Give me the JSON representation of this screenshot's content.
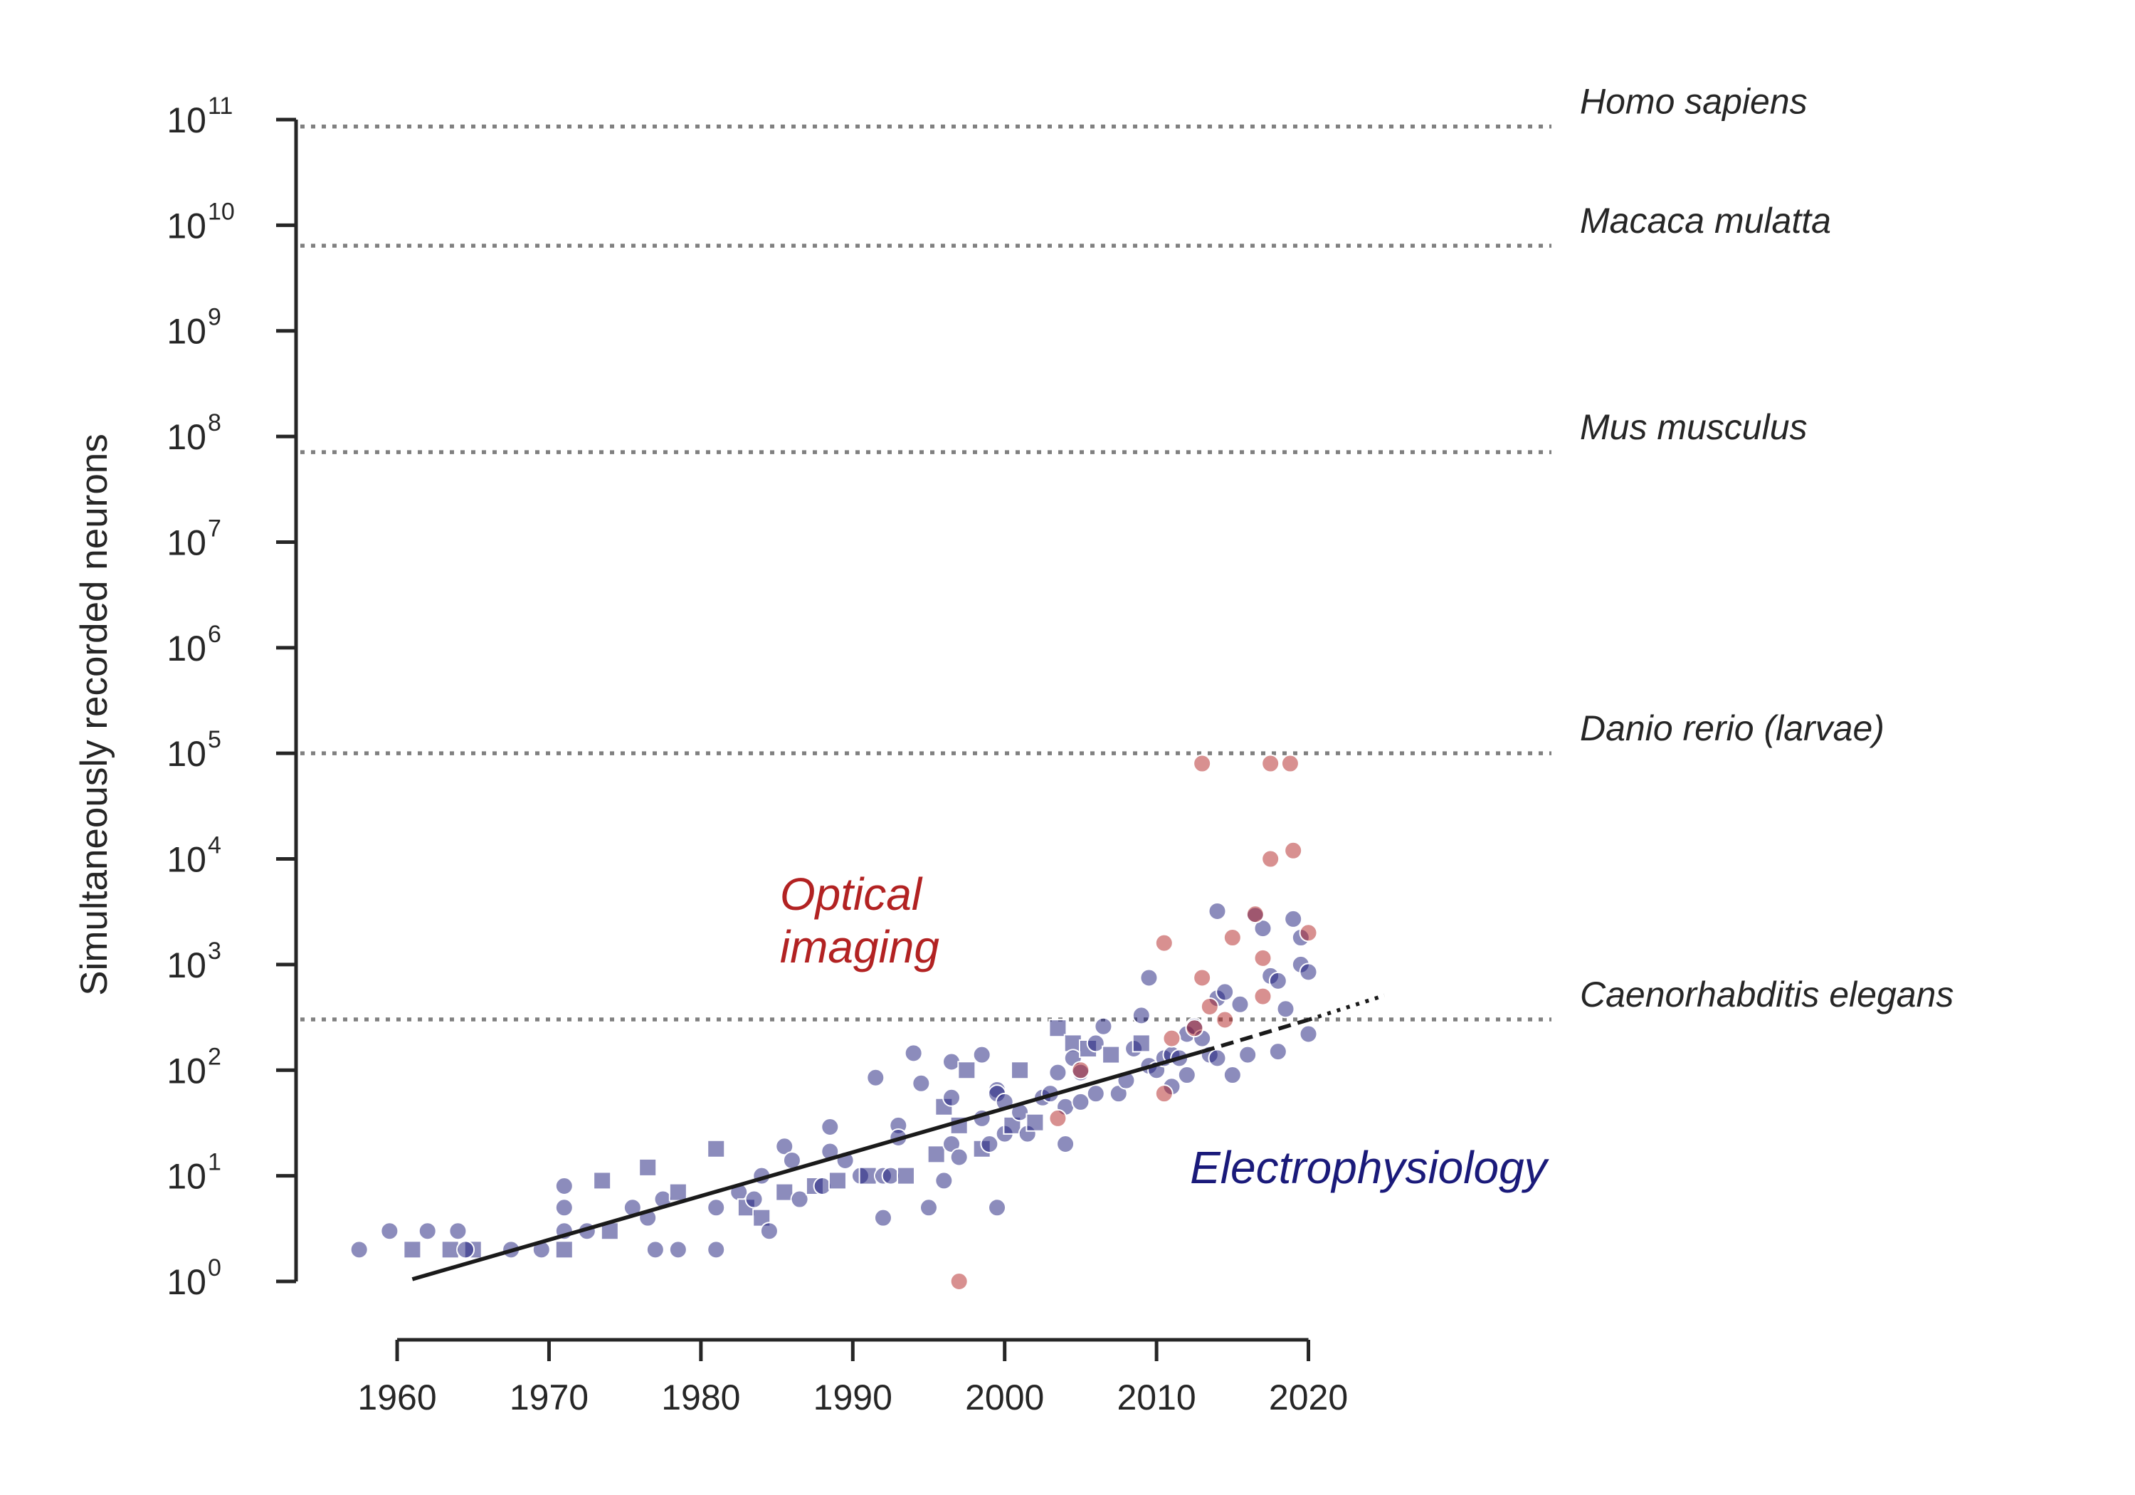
{
  "chart_data": {
    "type": "scatter",
    "ylabel": "Simultaneously recorded neurons",
    "xlabel": "",
    "y_scale": "log",
    "x_ticks": [
      1960,
      1970,
      1980,
      1990,
      2000,
      2010,
      2020
    ],
    "xlim": [
      1954,
      2036
    ],
    "y_tick_exponents": [
      0,
      1,
      2,
      3,
      4,
      5,
      6,
      7,
      8,
      9,
      10,
      11
    ],
    "y_tick_base": "10",
    "ylim": [
      1,
      100000000000
    ],
    "grid": false,
    "colors": {
      "electrophysiology": "#1a1a7a",
      "optical": "#b22222",
      "reference_line": "#808080",
      "trend": "#1a1a1a"
    },
    "reference_lines": [
      {
        "label": "Homo sapiens",
        "y": 86000000000
      },
      {
        "label": "Macaca mulatta",
        "y": 6400000000
      },
      {
        "label": "Mus musculus",
        "y": 71000000
      },
      {
        "label": "Danio rerio (larvae)",
        "y": 100000
      },
      {
        "label": "Caenorhabditis elegans",
        "y": 302
      }
    ],
    "annotations": [
      {
        "text_lines": [
          "Optical",
          "imaging"
        ],
        "color": "#b22222",
        "x": 1985.2,
        "y": 1050
      },
      {
        "text_lines": [
          "Electrophysiology"
        ],
        "color": "#1a1a7a",
        "x": 2012.2,
        "y": 8.5
      }
    ],
    "trend_line": {
      "solid": [
        [
          1961,
          1.05
        ],
        [
          2013,
          150
        ]
      ],
      "dashed": [
        [
          2013,
          150
        ],
        [
          2020,
          300
        ]
      ],
      "dotted": [
        [
          2020,
          300
        ],
        [
          2025,
          510
        ]
      ]
    },
    "series": [
      {
        "name": "Electrophysiology",
        "marker_shapes": [
          "circle",
          "square"
        ],
        "points": [
          [
            1957.5,
            2,
            "c"
          ],
          [
            1959.5,
            3,
            "c"
          ],
          [
            1962,
            3,
            "c"
          ],
          [
            1961,
            2,
            "s"
          ],
          [
            1963.5,
            2,
            "s"
          ],
          [
            1964,
            3,
            "c"
          ],
          [
            1965,
            2,
            "s"
          ],
          [
            1964.5,
            2,
            "c"
          ],
          [
            1967.5,
            2,
            "c"
          ],
          [
            1969.5,
            2,
            "c"
          ],
          [
            1971,
            2,
            "s"
          ],
          [
            1971,
            8,
            "c"
          ],
          [
            1971,
            5,
            "c"
          ],
          [
            1971,
            3,
            "c"
          ],
          [
            1972.5,
            3,
            "c"
          ],
          [
            1973.5,
            9,
            "s"
          ],
          [
            1974,
            3,
            "s"
          ],
          [
            1975.5,
            5,
            "c"
          ],
          [
            1976.5,
            12,
            "s"
          ],
          [
            1976.5,
            4,
            "c"
          ],
          [
            1977,
            2,
            "c"
          ],
          [
            1977.5,
            6,
            "c"
          ],
          [
            1978.5,
            7,
            "s"
          ],
          [
            1978.5,
            2,
            "c"
          ],
          [
            1981,
            18,
            "s"
          ],
          [
            1981,
            2,
            "c"
          ],
          [
            1981,
            5,
            "c"
          ],
          [
            1982.5,
            7,
            "c"
          ],
          [
            1983,
            5,
            "s"
          ],
          [
            1983.5,
            6,
            "c"
          ],
          [
            1984,
            4,
            "s"
          ],
          [
            1984.5,
            3,
            "c"
          ],
          [
            1984,
            10,
            "c"
          ],
          [
            1985.5,
            7,
            "s"
          ],
          [
            1985.5,
            19,
            "c"
          ],
          [
            1986,
            14,
            "c"
          ],
          [
            1986.5,
            6,
            "c"
          ],
          [
            1987.5,
            8,
            "s"
          ],
          [
            1988,
            8,
            "c"
          ],
          [
            1988.5,
            17,
            "c"
          ],
          [
            1988.5,
            29,
            "c"
          ],
          [
            1989,
            9,
            "s"
          ],
          [
            1989.5,
            14,
            "c"
          ],
          [
            1990.5,
            10,
            "c"
          ],
          [
            1991,
            10,
            "s"
          ],
          [
            1991.5,
            85,
            "c"
          ],
          [
            1992,
            10,
            "c"
          ],
          [
            1992,
            4,
            "c"
          ],
          [
            1992.5,
            10,
            "c"
          ],
          [
            1993,
            30,
            "c"
          ],
          [
            1993,
            23,
            "c"
          ],
          [
            1993.5,
            10,
            "s"
          ],
          [
            1994,
            145,
            "c"
          ],
          [
            1994.5,
            75,
            "c"
          ],
          [
            1995,
            5,
            "c"
          ],
          [
            1995.5,
            16,
            "s"
          ],
          [
            1996,
            45,
            "s"
          ],
          [
            1996,
            9,
            "c"
          ],
          [
            1996.5,
            120,
            "c"
          ],
          [
            1996.5,
            55,
            "c"
          ],
          [
            1996.5,
            20,
            "c"
          ],
          [
            1997,
            15,
            "c"
          ],
          [
            1997,
            30,
            "s"
          ],
          [
            1997.5,
            100,
            "s"
          ],
          [
            1998.5,
            35,
            "c"
          ],
          [
            1998.5,
            18,
            "s"
          ],
          [
            1998.5,
            140,
            "c"
          ],
          [
            1999,
            20,
            "c"
          ],
          [
            1999.5,
            65,
            "c"
          ],
          [
            1999.5,
            60,
            "c"
          ],
          [
            1999.5,
            5,
            "c"
          ],
          [
            2000,
            25,
            "c"
          ],
          [
            2000,
            50,
            "c"
          ],
          [
            2000.5,
            30,
            "s"
          ],
          [
            2001,
            40,
            "c"
          ],
          [
            2001,
            100,
            "s"
          ],
          [
            2001.5,
            25,
            "c"
          ],
          [
            2002,
            32,
            "s"
          ],
          [
            2002.5,
            55,
            "c"
          ],
          [
            2003,
            60,
            "c"
          ],
          [
            2003.5,
            250,
            "s"
          ],
          [
            2003.5,
            95,
            "c"
          ],
          [
            2004,
            20,
            "c"
          ],
          [
            2004,
            45,
            "c"
          ],
          [
            2004.5,
            180,
            "s"
          ],
          [
            2004.5,
            130,
            "c"
          ],
          [
            2005,
            50,
            "c"
          ],
          [
            2005,
            95,
            "c"
          ],
          [
            2005.5,
            160,
            "s"
          ],
          [
            2006,
            180,
            "c"
          ],
          [
            2006,
            60,
            "c"
          ],
          [
            2006.5,
            260,
            "c"
          ],
          [
            2007,
            140,
            "s"
          ],
          [
            2007.5,
            60,
            "c"
          ],
          [
            2008,
            80,
            "c"
          ],
          [
            2008.5,
            160,
            "c"
          ],
          [
            2009,
            180,
            "s"
          ],
          [
            2009.5,
            110,
            "c"
          ],
          [
            2009,
            330,
            "c"
          ],
          [
            2009.5,
            750,
            "c"
          ],
          [
            2010,
            100,
            "c"
          ],
          [
            2010.5,
            130,
            "c"
          ],
          [
            2011,
            70,
            "c"
          ],
          [
            2011,
            140,
            "c"
          ],
          [
            2011.5,
            130,
            "c"
          ],
          [
            2012,
            90,
            "c"
          ],
          [
            2012,
            220,
            "c"
          ],
          [
            2012.5,
            260,
            "c"
          ],
          [
            2013,
            200,
            "c"
          ],
          [
            2013.5,
            140,
            "c"
          ],
          [
            2014,
            3200,
            "c"
          ],
          [
            2014,
            480,
            "c"
          ],
          [
            2014,
            130,
            "c"
          ],
          [
            2014.5,
            550,
            "c"
          ],
          [
            2015,
            90,
            "c"
          ],
          [
            2015.5,
            420,
            "c"
          ],
          [
            2016,
            140,
            "c"
          ],
          [
            2016.5,
            2900,
            "c"
          ],
          [
            2017,
            2200,
            "c"
          ],
          [
            2017.5,
            780,
            "c"
          ],
          [
            2018,
            150,
            "c"
          ],
          [
            2018,
            700,
            "c"
          ],
          [
            2018.5,
            380,
            "c"
          ],
          [
            2019,
            2700,
            "c"
          ],
          [
            2019.5,
            1800,
            "c"
          ],
          [
            2019.5,
            1000,
            "c"
          ],
          [
            2020,
            850,
            "c"
          ],
          [
            2020,
            220,
            "c"
          ]
        ]
      },
      {
        "name": "Optical imaging",
        "marker_shapes": [
          "circle"
        ],
        "points": [
          [
            1997,
            1,
            "c"
          ],
          [
            2003.5,
            35,
            "c"
          ],
          [
            2005,
            100,
            "c"
          ],
          [
            2010.5,
            60,
            "c"
          ],
          [
            2010.5,
            1600,
            "c"
          ],
          [
            2011,
            200,
            "c"
          ],
          [
            2012.5,
            250,
            "c"
          ],
          [
            2013,
            750,
            "c"
          ],
          [
            2013,
            80000,
            "c"
          ],
          [
            2013.5,
            400,
            "c"
          ],
          [
            2014.5,
            300,
            "c"
          ],
          [
            2015,
            1800,
            "c"
          ],
          [
            2016.5,
            3000,
            "c"
          ],
          [
            2017,
            1150,
            "c"
          ],
          [
            2017,
            500,
            "c"
          ],
          [
            2017.5,
            10000,
            "c"
          ],
          [
            2017.5,
            80000,
            "c"
          ],
          [
            2018.8,
            80000,
            "c"
          ],
          [
            2019,
            12000,
            "c"
          ],
          [
            2020,
            2000,
            "c"
          ]
        ]
      }
    ]
  }
}
